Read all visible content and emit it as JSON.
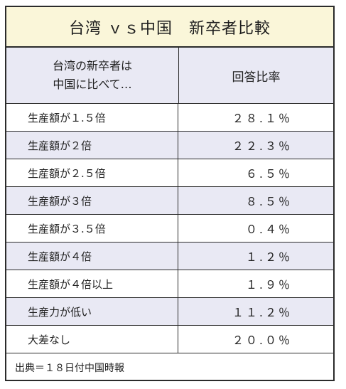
{
  "title": "台湾 ｖｓ中国　新卒者比較",
  "header": {
    "left_line1": "台湾の新卒者は",
    "left_line2": "中国に比べて…",
    "right": "回答比率"
  },
  "rows": [
    {
      "label": "生産額が１.５倍",
      "value": "２８.１％"
    },
    {
      "label": "生産額が２倍",
      "value": "２２.３％"
    },
    {
      "label": "生産額が２.５倍",
      "value": "６.５％"
    },
    {
      "label": "生産額が３倍",
      "value": "８.５％"
    },
    {
      "label": "生産額が３.５倍",
      "value": "０.４％"
    },
    {
      "label": "生産額が４倍",
      "value": "１.２％"
    },
    {
      "label": "生産額が４倍以上",
      "value": "１.９％"
    },
    {
      "label": "生産力が低い",
      "value": "１１.２％"
    },
    {
      "label": "大差なし",
      "value": "２０.０％"
    }
  ],
  "footer": "出典＝１８日付中国時報"
}
